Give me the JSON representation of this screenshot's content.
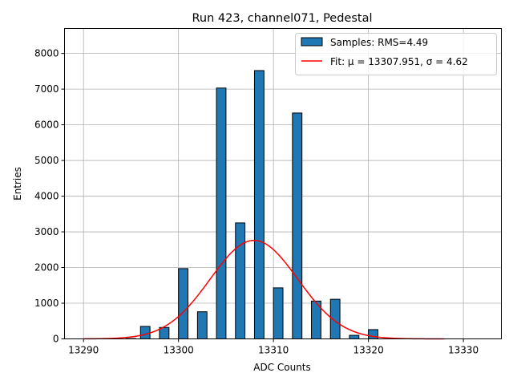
{
  "chart_data": {
    "type": "bar",
    "title": "Run 423, channel071, Pedestal",
    "xlabel": "ADC Counts",
    "ylabel": "Entries",
    "xlim": [
      13288,
      13334
    ],
    "ylim": [
      0,
      8700
    ],
    "xticks": [
      13290,
      13300,
      13310,
      13320,
      13330
    ],
    "yticks": [
      0,
      1000,
      2000,
      3000,
      4000,
      5000,
      6000,
      7000,
      8000
    ],
    "grid": true,
    "legend_position": "top-right",
    "bar_width": 1,
    "bars": [
      {
        "x": 13295,
        "value": 10
      },
      {
        "x": 13296.5,
        "value": 350
      },
      {
        "x": 13298.5,
        "value": 320
      },
      {
        "x": 13300.5,
        "value": 1970
      },
      {
        "x": 13302.5,
        "value": 760
      },
      {
        "x": 13304.5,
        "value": 7030
      },
      {
        "x": 13306.5,
        "value": 3250
      },
      {
        "x": 13308.5,
        "value": 7520
      },
      {
        "x": 13310.5,
        "value": 1430
      },
      {
        "x": 13312.5,
        "value": 6330
      },
      {
        "x": 13314.5,
        "value": 1060
      },
      {
        "x": 13316.5,
        "value": 1110
      },
      {
        "x": 13318.5,
        "value": 100
      },
      {
        "x": 13320.5,
        "value": 260
      }
    ],
    "fit": {
      "mu": 13307.951,
      "sigma": 4.62,
      "amplitude": 2760,
      "x_range": [
        13290,
        13328
      ]
    },
    "series": [
      {
        "name": "Samples: RMS=4.49",
        "color": "#1f77b4",
        "kind": "histogram"
      },
      {
        "name": "Fit: μ = 13307.951, σ = 4.62",
        "color": "#ff0000",
        "kind": "line"
      }
    ]
  }
}
